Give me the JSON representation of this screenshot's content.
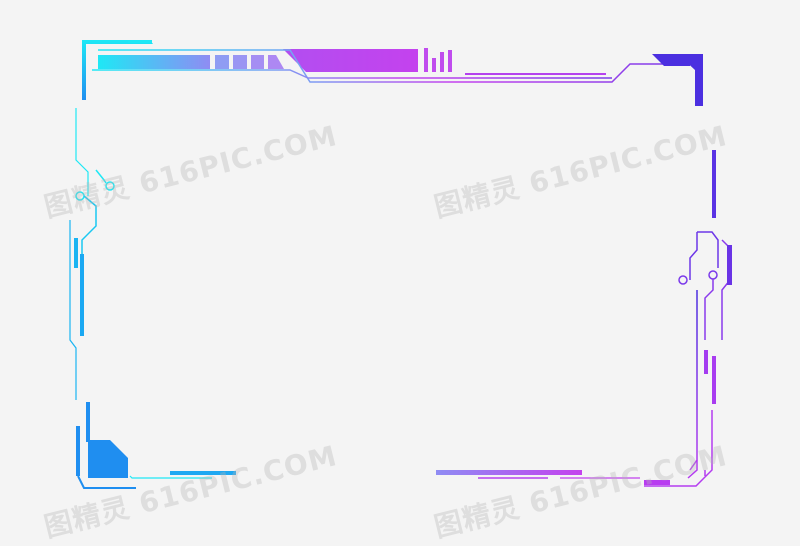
{
  "watermark": {
    "text": "图精灵 616PIC.COM"
  },
  "colors": {
    "cyan": "#1ee8f5",
    "blue": "#1f8ef0",
    "purple": "#8a3cf0",
    "magenta": "#c442ee",
    "indigo": "#4b2fe0",
    "background": "#f4f4f4"
  },
  "icons": [
    "tech-hud-frame"
  ]
}
